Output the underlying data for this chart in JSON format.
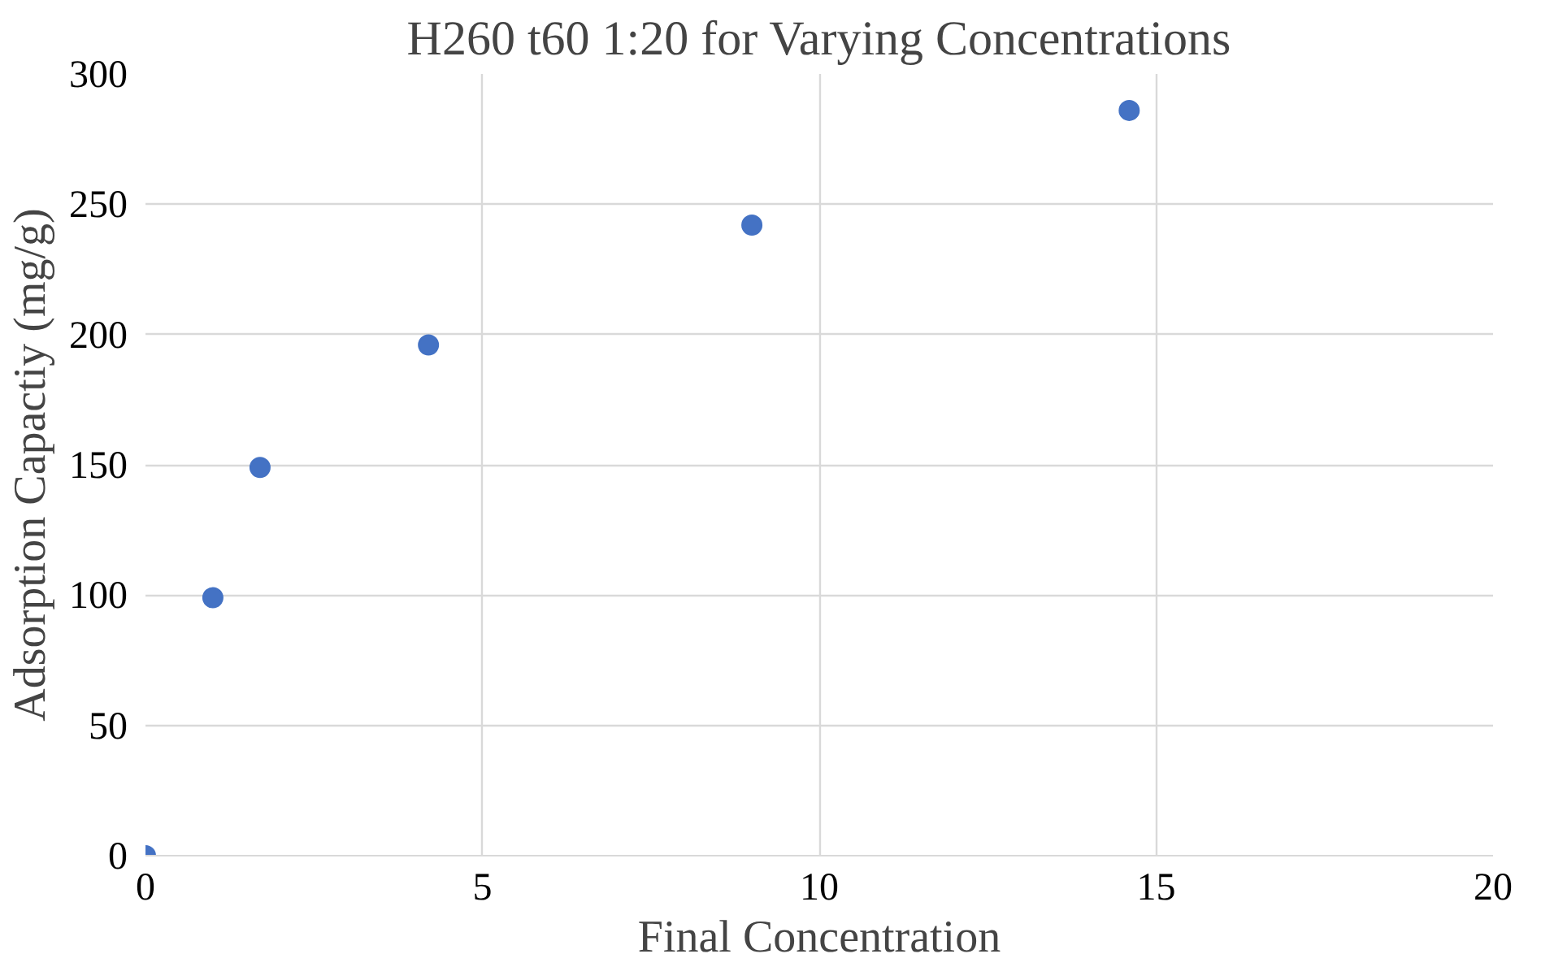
{
  "chart_data": {
    "type": "scatter",
    "title": "H260 t60 1:20 for Varying Concentrations",
    "xlabel": "Final Concentration",
    "ylabel": "Adsorption Capactiy (mg/g)",
    "x": [
      0,
      1.0,
      1.7,
      4.2,
      9.0,
      14.6
    ],
    "series": [
      {
        "color": "#4472c4",
        "values": [
          0,
          99,
          149,
          196,
          242,
          286
        ]
      }
    ],
    "xlim": [
      0,
      20
    ],
    "ylim": [
      0,
      300
    ],
    "xticks": [
      0,
      5,
      10,
      15,
      20
    ],
    "yticks": [
      0,
      50,
      100,
      150,
      200,
      250,
      300
    ],
    "grid": true,
    "marker": "circle"
  }
}
